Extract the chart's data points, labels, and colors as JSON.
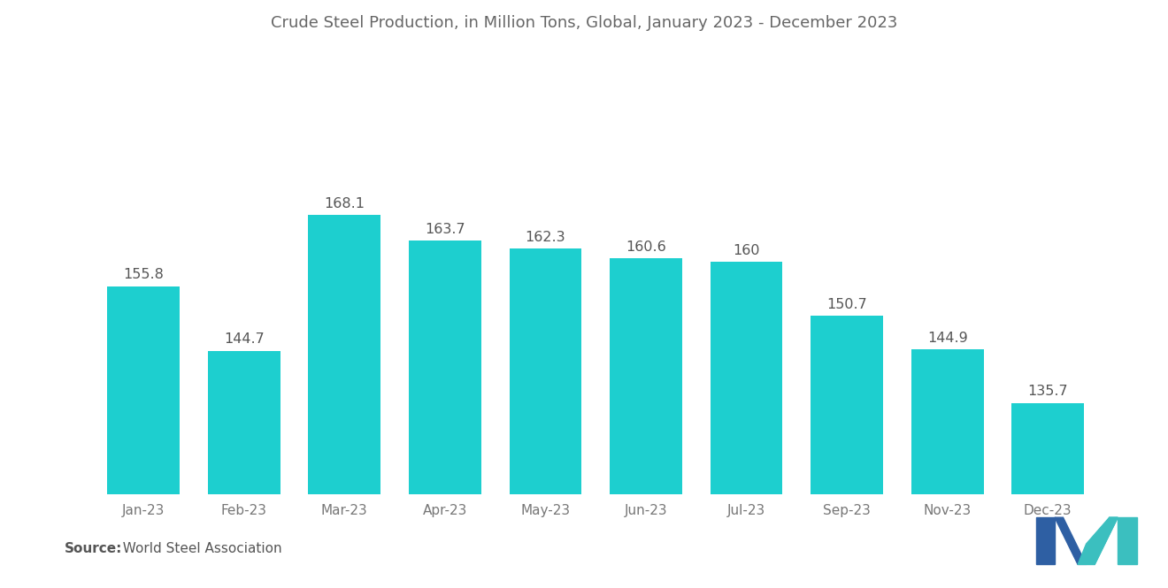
{
  "title": "Crude Steel Production, in Million Tons, Global, January 2023 - December 2023",
  "categories": [
    "Jan-23",
    "Feb-23",
    "Mar-23",
    "Apr-23",
    "May-23",
    "Jun-23",
    "Jul-23",
    "Sep-23",
    "Nov-23",
    "Dec-23"
  ],
  "values": [
    155.8,
    144.7,
    168.1,
    163.7,
    162.3,
    160.6,
    160,
    150.7,
    144.9,
    135.7
  ],
  "bar_color": "#1DCFCF",
  "background_color": "#ffffff",
  "title_color": "#666666",
  "label_color": "#555555",
  "tick_color": "#777777",
  "source_bold": "Source:",
  "source_rest": "  World Steel Association",
  "title_fontsize": 13.0,
  "label_fontsize": 11.5,
  "tick_fontsize": 11.0,
  "source_fontsize": 11.0,
  "ylim_min": 120,
  "ylim_max": 195,
  "bar_width": 0.72,
  "logo_blue": "#2E5FA3",
  "logo_teal": "#3BBFBF"
}
